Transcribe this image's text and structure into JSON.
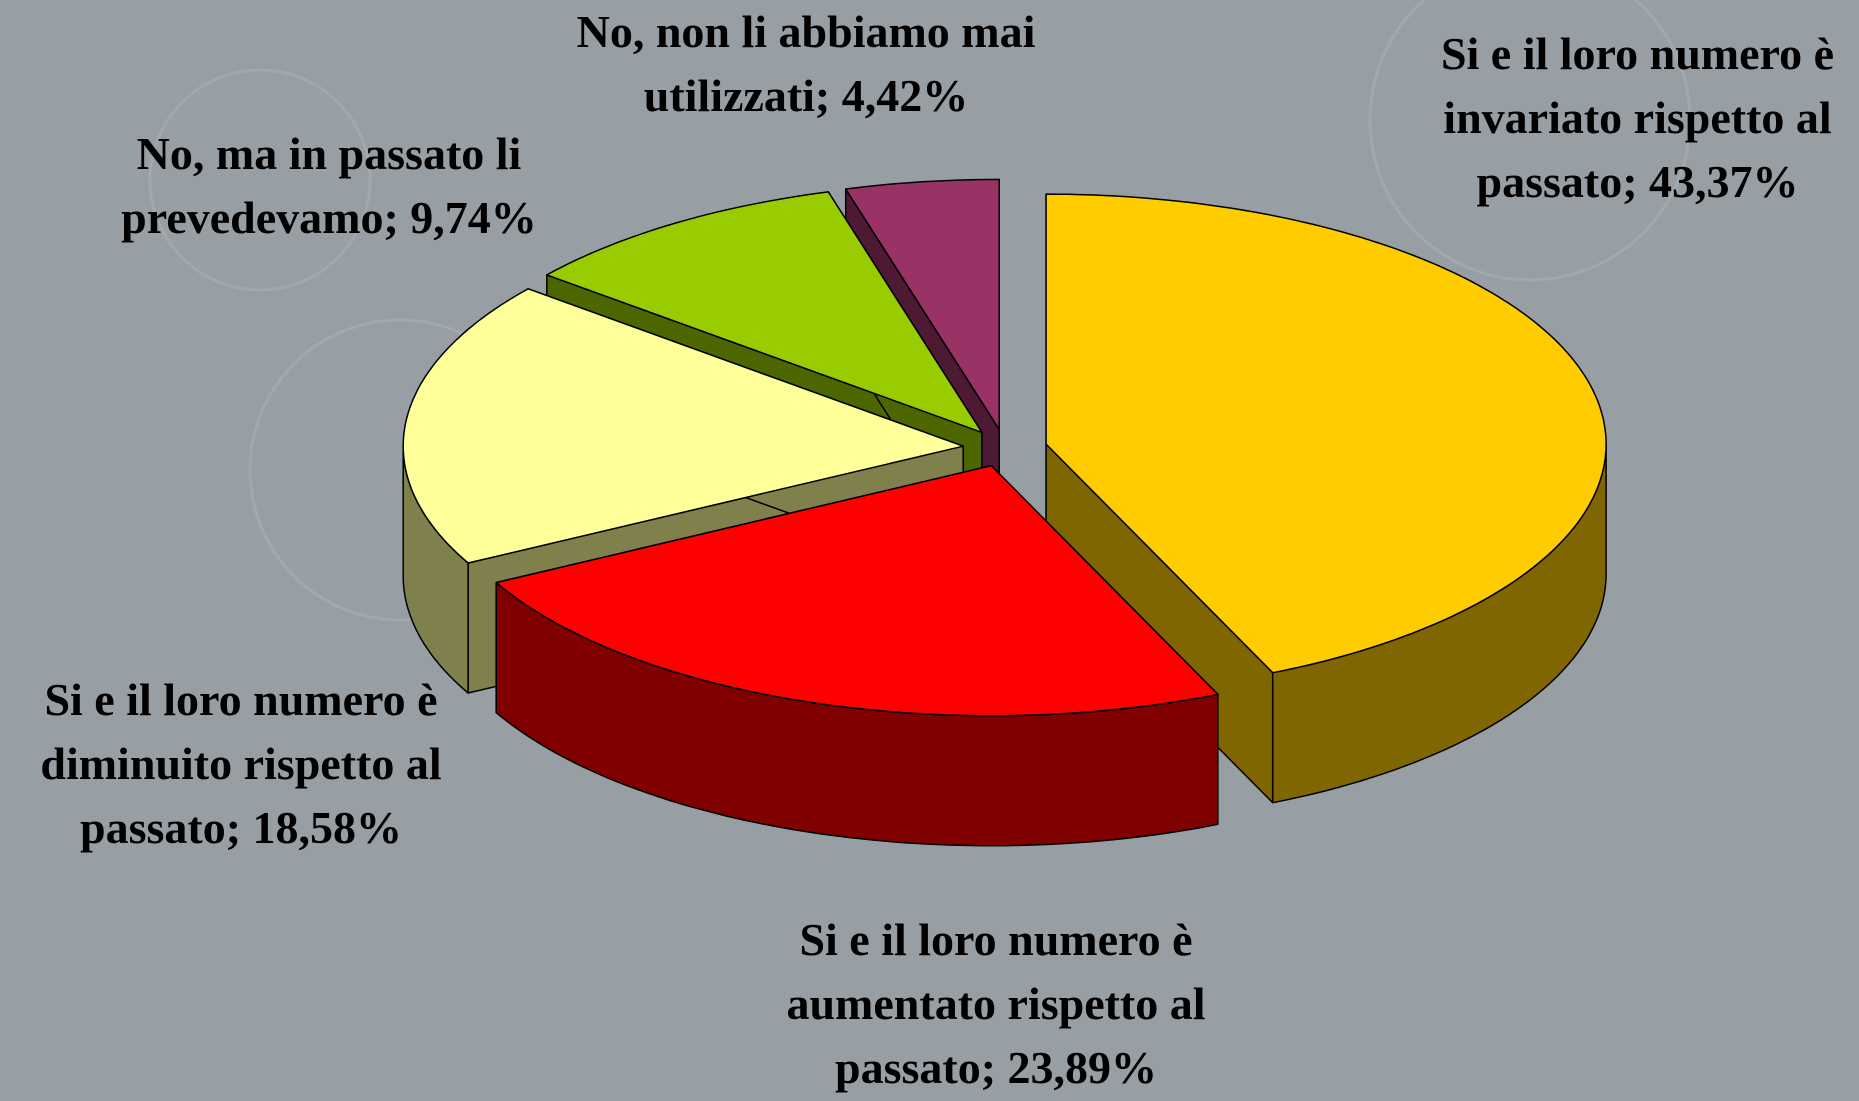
{
  "chart_data": {
    "type": "pie3d",
    "value_labels": [
      "Si e il loro numero è invariato rispetto al passato; 43,37%",
      "Si e il loro numero è aumentato rispetto al passato; 23,89%",
      "Si e il loro numero è diminuito rispetto al passato; 18,58%",
      "No, ma in passato li prevedevamo; 9,74%",
      "No, non li abbiamo mai utilizzati; 4,42%"
    ],
    "values": [
      43.37,
      23.89,
      18.58,
      9.74,
      4.42
    ],
    "colors": [
      "#FFCC00",
      "#FF0000",
      "#FFFF99",
      "#99CC00",
      "#993366"
    ],
    "side_colors": [
      "#806600",
      "#800000",
      "#80804D",
      "#4D6600",
      "#4D1933"
    ]
  }
}
